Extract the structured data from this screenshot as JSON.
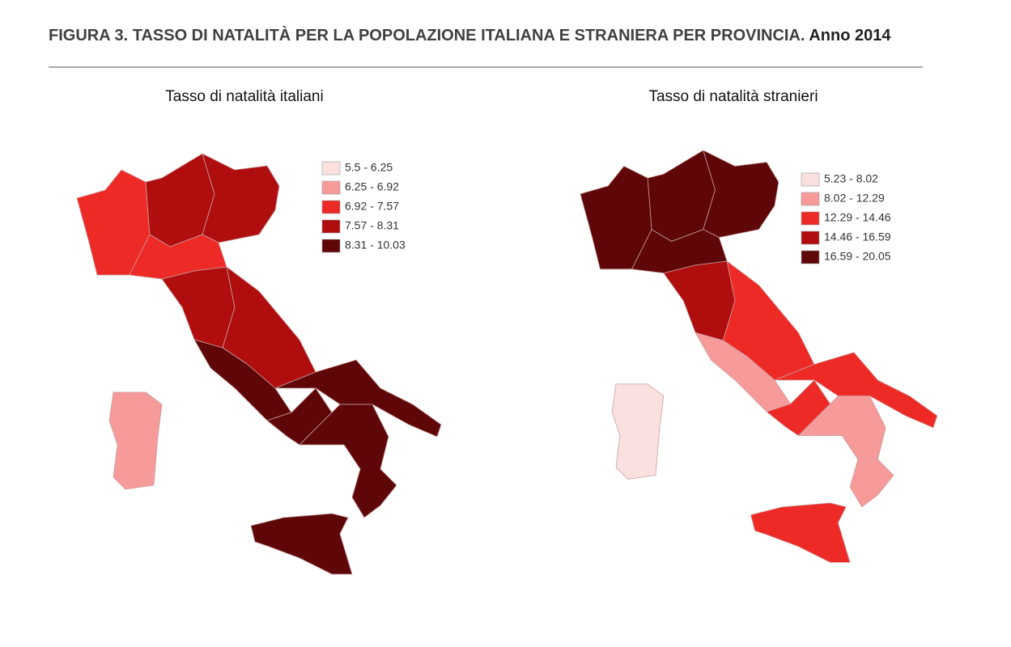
{
  "header": {
    "title": "FIGURA 3. TASSO DI NATALITÀ PER LA POPOLAZIONE ITALIANA E STRANIERA PER PROVINCIA.",
    "subtitle": "Anno 2014"
  },
  "maps": [
    {
      "title": "Tasso di natalità italiani",
      "legend": [
        {
          "label": "5.5 - 6.25",
          "color": "#fbe0e0"
        },
        {
          "label": "6.25 - 6.92",
          "color": "#f79a9a"
        },
        {
          "label": "6.92 - 7.57",
          "color": "#ee2a26"
        },
        {
          "label": "7.57 - 8.31",
          "color": "#b00d0f"
        },
        {
          "label": "8.31 - 10.03",
          "color": "#5e0608"
        }
      ]
    },
    {
      "title": "Tasso di natalità  stranieri",
      "legend": [
        {
          "label": "5.23 - 8.02",
          "color": "#fbe0e0"
        },
        {
          "label": "8.02 - 12.29",
          "color": "#f79a9a"
        },
        {
          "label": "12.29 - 14.46",
          "color": "#ee2a26"
        },
        {
          "label": "14.46 - 16.59",
          "color": "#b00d0f"
        },
        {
          "label": "16.59 - 20.05",
          "color": "#5e0608"
        }
      ]
    }
  ]
}
